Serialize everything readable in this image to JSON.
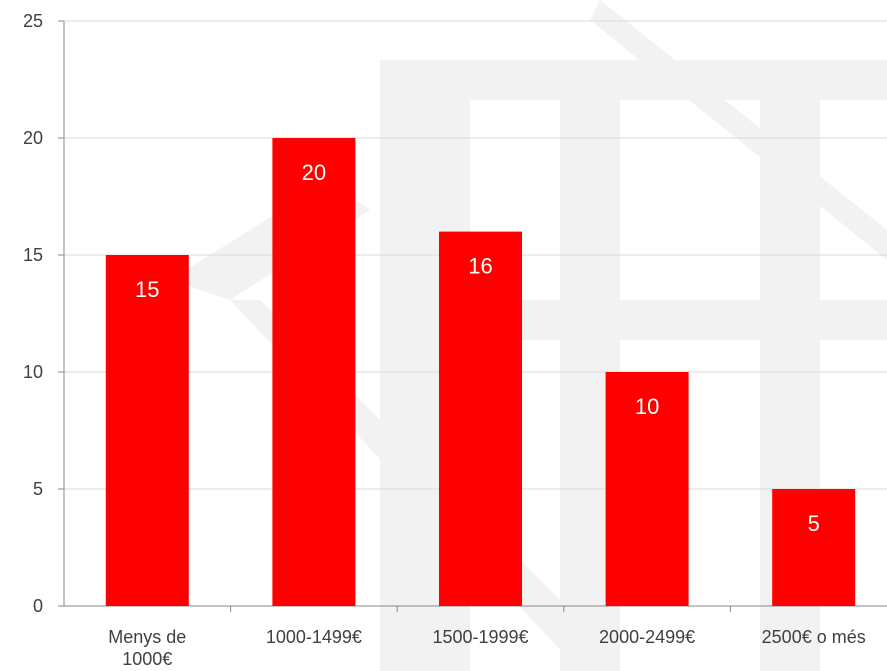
{
  "chart_data": {
    "type": "bar",
    "categories": [
      [
        "Menys de",
        "1000€"
      ],
      [
        "1000-1499€"
      ],
      [
        "1500-1999€"
      ],
      [
        "2000-2499€"
      ],
      [
        "2500€ o més"
      ]
    ],
    "values": [
      15,
      20,
      16,
      10,
      5
    ],
    "data_labels": [
      "15",
      "20",
      "16",
      "10",
      "5"
    ],
    "ylim": [
      0,
      25
    ],
    "yticks": [
      0,
      5,
      10,
      15,
      20,
      25
    ],
    "grid": true,
    "bar_color": "#ff0000",
    "gridline_color": "#d9d9d9",
    "watermark_color": "#f2f2f2"
  }
}
